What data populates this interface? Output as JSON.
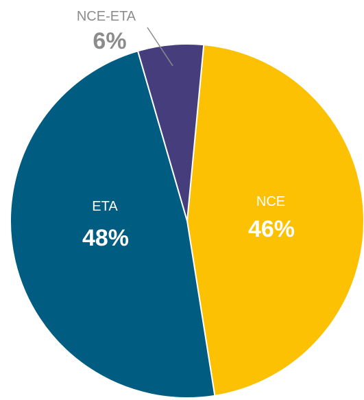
{
  "chart_data": {
    "type": "pie",
    "title": "",
    "slices": [
      {
        "name": "NCE",
        "value": 46,
        "label": "46%",
        "color": "#FBC102",
        "text_color": "#FFFFFF",
        "label_placement": "inside"
      },
      {
        "name": "ETA",
        "value": 48,
        "label": "48%",
        "color": "#005C80",
        "text_color": "#FFFFFF",
        "label_placement": "inside"
      },
      {
        "name": "NCE-ETA",
        "value": 6,
        "label": "6%",
        "color": "#463E7C",
        "text_color": "#8C8C8C",
        "label_placement": "outside-with-leader"
      }
    ],
    "legend": "none"
  }
}
